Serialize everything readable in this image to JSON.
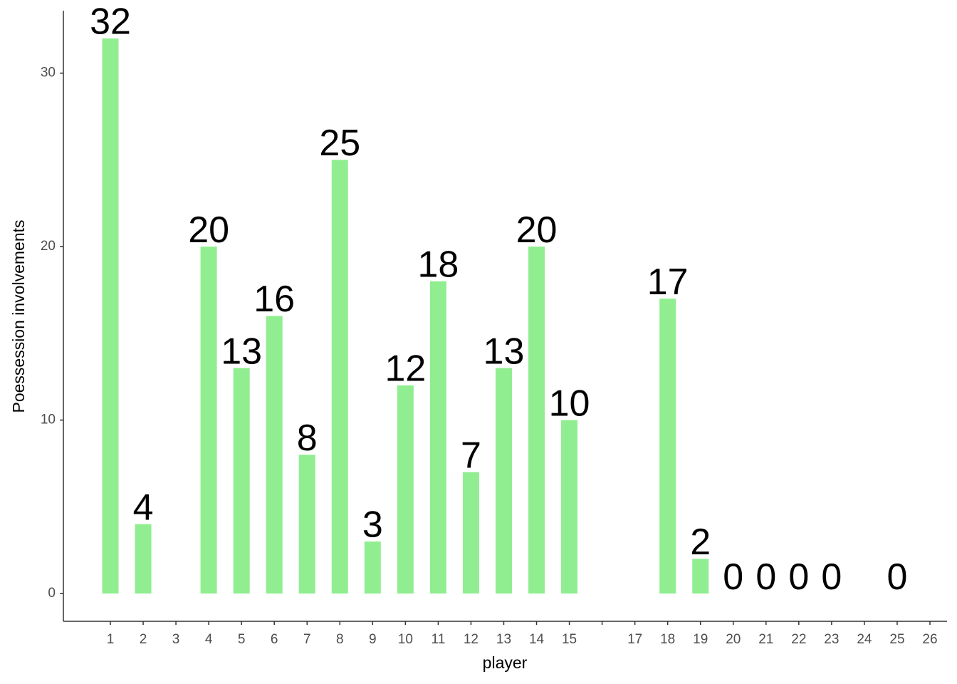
{
  "chart_data": {
    "type": "bar",
    "x_label": "player",
    "y_label": "Poessession involvements",
    "categories": [
      "1",
      "2",
      "3",
      "4",
      "5",
      "6",
      "7",
      "8",
      "9",
      "10",
      "11",
      "12",
      "13",
      "14",
      "15",
      null,
      "17",
      "18",
      "19",
      "20",
      "21",
      "22",
      "23",
      "24",
      "25",
      "26"
    ],
    "values": [
      32,
      4,
      null,
      20,
      13,
      16,
      8,
      25,
      3,
      12,
      18,
      7,
      13,
      20,
      10,
      null,
      null,
      17,
      2,
      0,
      0,
      0,
      0,
      null,
      0,
      null
    ],
    "color": "#90ee90",
    "ylim": [
      -1.6,
      33.6
    ],
    "yticks": [
      0,
      10,
      20,
      30
    ],
    "grid": false
  }
}
